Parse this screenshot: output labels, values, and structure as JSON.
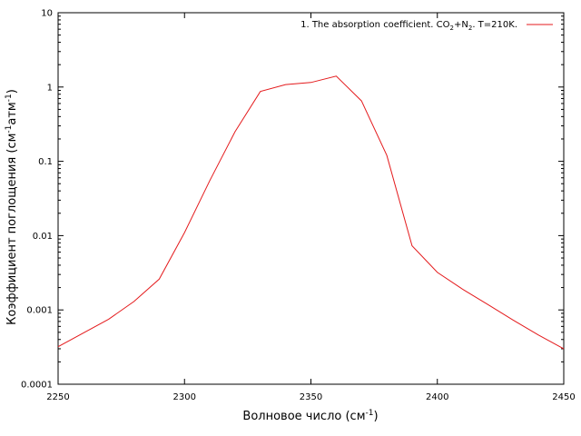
{
  "chart_data": {
    "type": "line",
    "title": "",
    "xlabel": {
      "main": "Волновое число (см",
      "sup": "-1",
      "end": ")"
    },
    "ylabel": {
      "p1": "Коэффициент поглощения (см",
      "s1": "-1",
      "p2": "атм",
      "s2": "-1",
      "end": ")"
    },
    "xlim": [
      2250,
      2450
    ],
    "ylim": [
      0.0001,
      10
    ],
    "yscale": "log",
    "grid": false,
    "legend_position": "top-right",
    "x_ticks": [
      2250,
      2300,
      2350,
      2400,
      2450
    ],
    "x_tick_labels": [
      "2250",
      "2300",
      "2350",
      "2400",
      "2450"
    ],
    "y_ticks": [
      0.0001,
      0.001,
      0.01,
      0.1,
      1,
      10
    ],
    "y_tick_labels": [
      "0.0001",
      "0.001",
      "0.01",
      "0.1",
      "1",
      "10"
    ],
    "series": [
      {
        "name": {
          "a": "1. The absorption coefficient. CO",
          "s1": "2",
          "b": "+N",
          "s2": "2",
          "c": ". T=210K."
        },
        "color": "#e41a1c",
        "x": [
          2250,
          2270,
          2280,
          2290,
          2300,
          2310,
          2320,
          2330,
          2340,
          2350,
          2360,
          2370,
          2380,
          2390,
          2400,
          2410,
          2420,
          2430,
          2440,
          2450
        ],
        "y": [
          0.00032,
          0.00075,
          0.0013,
          0.0026,
          0.011,
          0.055,
          0.25,
          0.87,
          1.08,
          1.15,
          1.4,
          0.65,
          0.12,
          0.0073,
          0.0032,
          0.0019,
          0.00118,
          0.00073,
          0.00046,
          0.0003
        ]
      }
    ]
  }
}
